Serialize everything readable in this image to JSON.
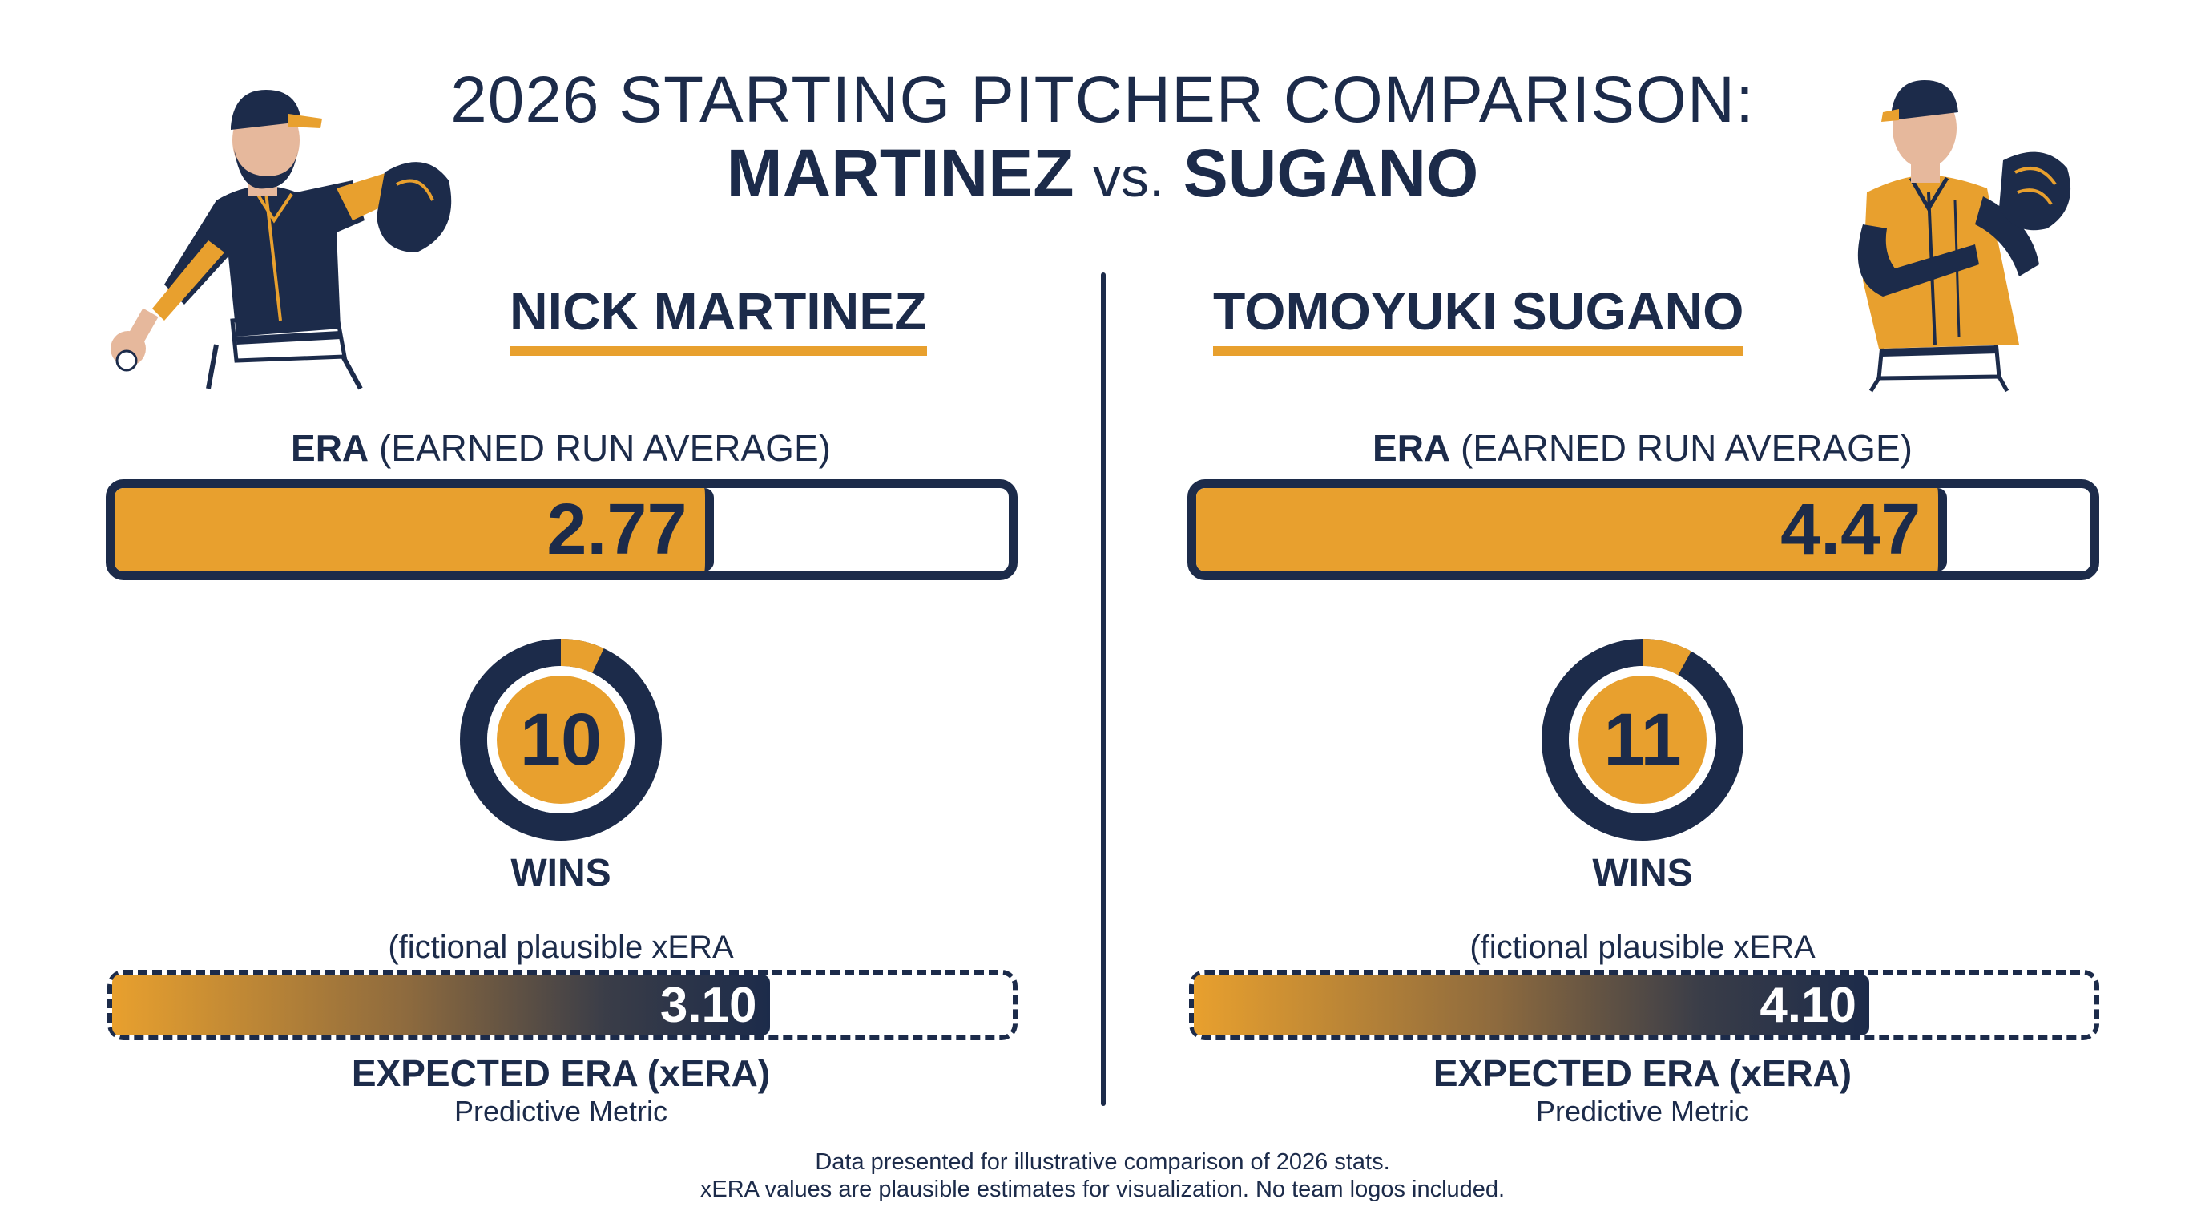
{
  "title": {
    "line1": "2026 STARTING PITCHER COMPARISON:",
    "line2_left": "MARTINEZ",
    "line2_vs": "vs.",
    "line2_right": "SUGANO"
  },
  "players": [
    {
      "name": "NICK MARTINEZ",
      "era_label_bold": "ERA",
      "era_label_rest": "(EARNED RUN AVERAGE)",
      "era": "2.77",
      "wins": "10",
      "wins_label": "WINS",
      "xera_note": "(fictional plausible xERA",
      "xera": "3.10",
      "xera_label": "EXPECTED ERA (xERA)",
      "xera_sub": "Predictive Metric"
    },
    {
      "name": "TOMOYUKI SUGANO",
      "era_label_bold": "ERA",
      "era_label_rest": "(EARNED RUN AVERAGE)",
      "era": "4.47",
      "wins": "11",
      "wins_label": "WINS",
      "xera_note": "(fictional plausible xERA",
      "xera": "4.10",
      "xera_label": "EXPECTED ERA (xERA)",
      "xera_sub": "Predictive Metric"
    }
  ],
  "footnote": {
    "line1": "Data presented for illustrative comparison of 2026 stats.",
    "line2": "xERA values are plausible estimates for visualization. No team logos included."
  },
  "colors": {
    "navy": "#1c2b4a",
    "gold": "#e8a02e",
    "background": "#ffffff"
  },
  "icons": [
    "pitcher-throwing-illustration",
    "pitcher-set-position-illustration"
  ],
  "chart_data": [
    {
      "type": "bar",
      "title": "ERA (EARNED RUN AVERAGE)",
      "categories": [
        "NICK MARTINEZ",
        "TOMOYUKI SUGANO"
      ],
      "values": [
        2.77,
        4.47
      ],
      "bar_fill_fraction": [
        0.66,
        0.83
      ]
    },
    {
      "type": "pie",
      "title": "WINS",
      "categories": [
        "NICK MARTINEZ",
        "TOMOYUKI SUGANO"
      ],
      "values": [
        10,
        11
      ],
      "ring_gold_arc_fraction": [
        0.07,
        0.08
      ]
    },
    {
      "type": "bar",
      "title": "EXPECTED ERA (xERA)",
      "categories": [
        "NICK MARTINEZ",
        "TOMOYUKI SUGANO"
      ],
      "values": [
        3.1,
        4.1
      ],
      "bar_fill_fraction": [
        0.73,
        0.75
      ]
    }
  ]
}
